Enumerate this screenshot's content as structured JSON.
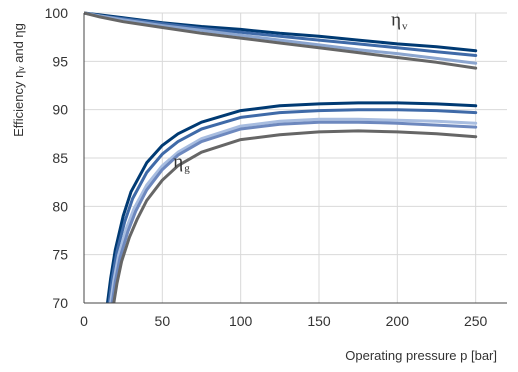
{
  "chart_data": {
    "type": "line",
    "title": "",
    "xlabel": "Operating pressure p [bar]",
    "ylabel": "Efficiency ηᵥ and ηg",
    "xlim": [
      0,
      270
    ],
    "ylim": [
      70,
      100
    ],
    "x_ticks": [
      0,
      50,
      100,
      150,
      200,
      250
    ],
    "y_ticks": [
      70,
      75,
      80,
      85,
      90,
      95,
      100
    ],
    "grid": true,
    "legend": "none",
    "annotations": [
      {
        "name": "eta_v",
        "text": "η",
        "sub": "v",
        "x": 196,
        "y": 98.7
      },
      {
        "name": "eta_g",
        "text": "η",
        "sub": "g",
        "x": 57,
        "y": 84.0
      }
    ],
    "series": [
      {
        "group": "eta_v",
        "color": "#003a73",
        "x": [
          0,
          10,
          25,
          50,
          75,
          100,
          125,
          150,
          175,
          200,
          225,
          250
        ],
        "y": [
          100,
          99.8,
          99.5,
          99.0,
          98.6,
          98.3,
          97.9,
          97.6,
          97.2,
          96.8,
          96.5,
          96.1
        ]
      },
      {
        "group": "eta_v",
        "color": "#3f6aa8",
        "x": [
          0,
          10,
          25,
          50,
          75,
          100,
          125,
          150,
          175,
          200,
          225,
          250
        ],
        "y": [
          100,
          99.7,
          99.4,
          98.9,
          98.4,
          98.0,
          97.6,
          97.2,
          96.8,
          96.4,
          96.0,
          95.6
        ]
      },
      {
        "group": "eta_v",
        "color": "#8ba5cf",
        "x": [
          0,
          10,
          25,
          50,
          75,
          100,
          125,
          150,
          175,
          200,
          225,
          250
        ],
        "y": [
          100,
          99.7,
          99.3,
          98.7,
          98.2,
          97.7,
          97.2,
          96.7,
          96.2,
          95.8,
          95.3,
          94.8
        ]
      },
      {
        "group": "eta_v",
        "color": "#666666",
        "x": [
          0,
          10,
          25,
          50,
          75,
          100,
          125,
          150,
          175,
          200,
          225,
          250
        ],
        "y": [
          100,
          99.6,
          99.1,
          98.5,
          97.9,
          97.4,
          96.9,
          96.4,
          95.9,
          95.4,
          94.9,
          94.3
        ]
      },
      {
        "group": "eta_g",
        "color": "#003a73",
        "x": [
          15,
          17,
          20,
          25,
          30,
          40,
          50,
          60,
          75,
          100,
          125,
          150,
          175,
          200,
          225,
          250
        ],
        "y": [
          70,
          72.5,
          75.5,
          79.0,
          81.5,
          84.5,
          86.3,
          87.5,
          88.7,
          89.9,
          90.4,
          90.6,
          90.7,
          90.7,
          90.6,
          90.4
        ]
      },
      {
        "group": "eta_g",
        "color": "#3f6aa8",
        "x": [
          16,
          18,
          21,
          26,
          31,
          40,
          50,
          60,
          75,
          100,
          125,
          150,
          175,
          200,
          225,
          250
        ],
        "y": [
          70,
          72.5,
          75.3,
          78.4,
          80.8,
          83.5,
          85.4,
          86.7,
          88.0,
          89.2,
          89.7,
          89.9,
          90.0,
          90.0,
          89.9,
          89.7
        ]
      },
      {
        "group": "eta_g",
        "color": "#a8bde0",
        "x": [
          17,
          19,
          22,
          27,
          32,
          40,
          50,
          60,
          75,
          100,
          125,
          150,
          175,
          200,
          225,
          250
        ],
        "y": [
          70,
          72.3,
          74.9,
          77.7,
          79.8,
          82.2,
          84.2,
          85.6,
          87.0,
          88.3,
          88.8,
          89.0,
          89.0,
          88.9,
          88.8,
          88.6
        ]
      },
      {
        "group": "eta_g",
        "color": "#6d88be",
        "x": [
          18,
          20,
          23,
          28,
          33,
          40,
          50,
          60,
          75,
          100,
          125,
          150,
          175,
          200,
          225,
          250
        ],
        "y": [
          70,
          72.2,
          74.7,
          77.4,
          79.5,
          81.7,
          83.8,
          85.3,
          86.7,
          88.0,
          88.5,
          88.7,
          88.7,
          88.6,
          88.4,
          88.2
        ]
      },
      {
        "group": "eta_g",
        "color": "#666666",
        "x": [
          19,
          21,
          24,
          29,
          34,
          40,
          50,
          60,
          75,
          100,
          125,
          150,
          175,
          200,
          225,
          250
        ],
        "y": [
          70,
          72.0,
          74.3,
          76.8,
          78.7,
          80.6,
          82.7,
          84.2,
          85.6,
          86.9,
          87.4,
          87.7,
          87.8,
          87.7,
          87.5,
          87.2
        ]
      }
    ]
  }
}
